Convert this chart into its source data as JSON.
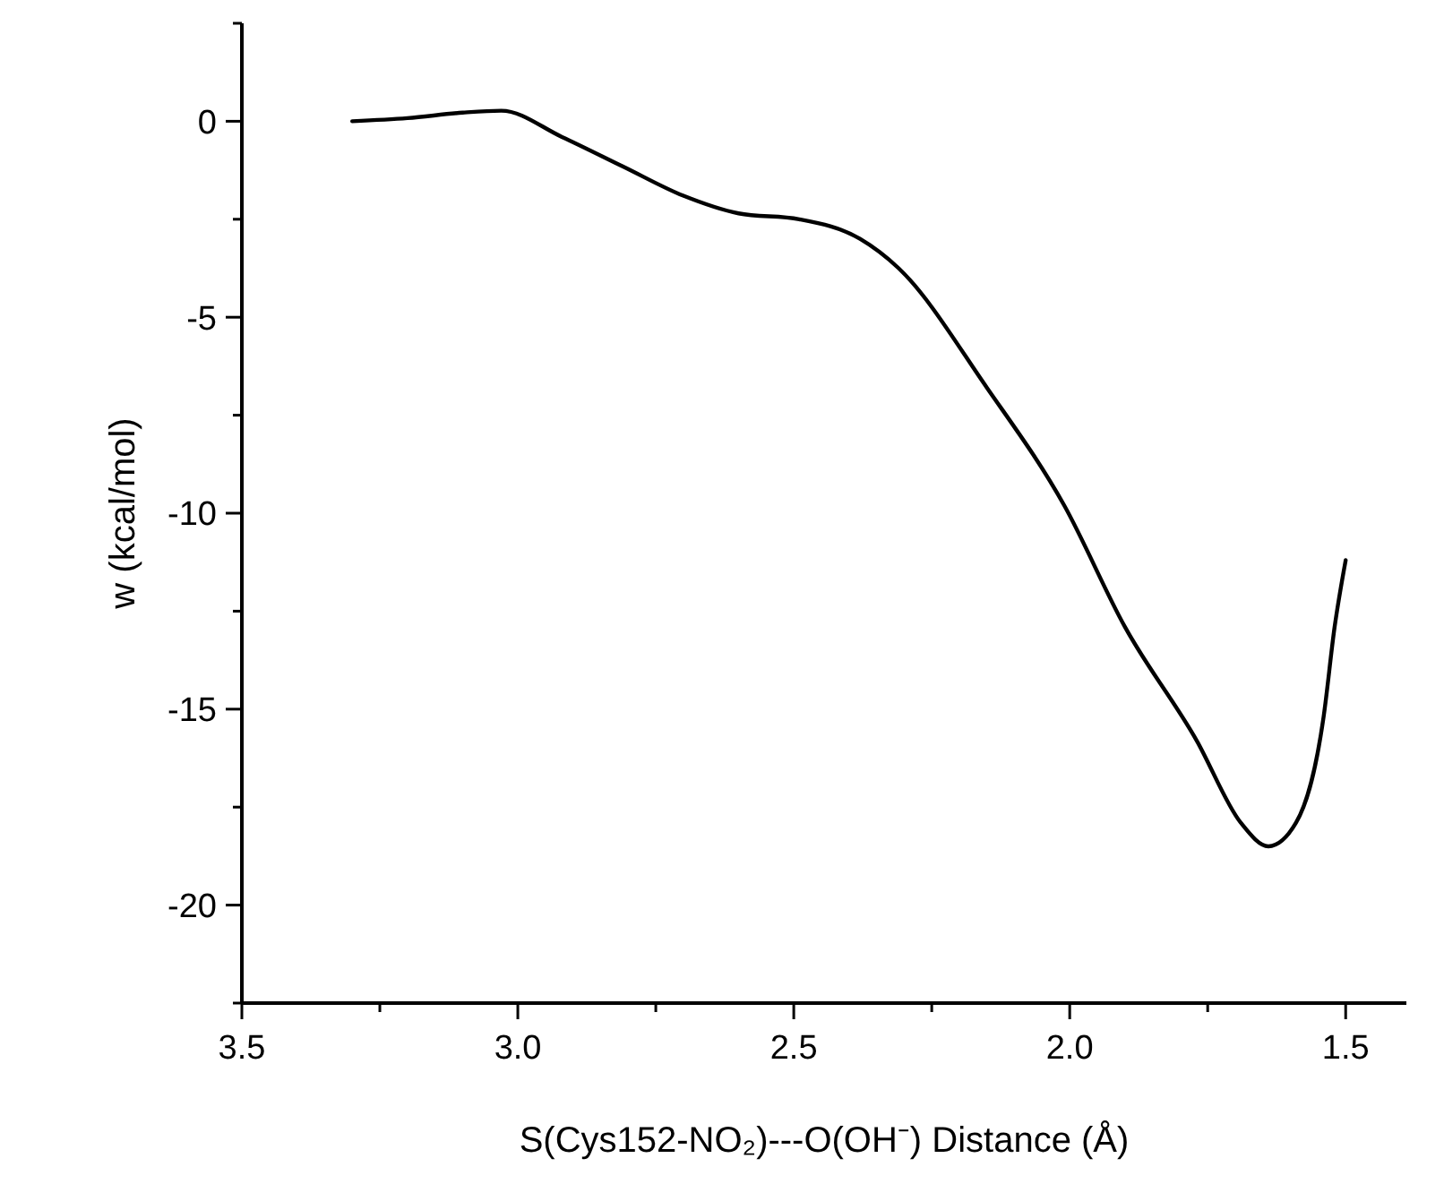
{
  "chart_data": {
    "type": "line",
    "xlabel": "S(Cys152-NO₂)---O(OH⁻) Distance (Å)",
    "ylabel": "w (kcal/mol)",
    "xlim": [
      3.5,
      1.39
    ],
    "ylim": [
      -22.5,
      2.5
    ],
    "xticks": [
      3.5,
      {
        "value": 3.25,
        "label": null
      },
      "3.0",
      {
        "value": 2.75,
        "label": null
      },
      2.5,
      {
        "value": 2.25,
        "label": null
      },
      "2.0",
      {
        "value": 1.75,
        "label": null
      },
      1.5
    ],
    "yticks": [
      {
        "value": -22.5,
        "label": null
      },
      -20,
      {
        "value": -17.5,
        "label": null
      },
      -15,
      {
        "value": -12.5,
        "label": null
      },
      -10,
      {
        "value": -7.5,
        "label": null
      },
      -5,
      {
        "value": -2.5,
        "label": null
      },
      0,
      {
        "value": 2.5,
        "label": null
      }
    ],
    "grid": false,
    "line_style": "solid",
    "marker": "none",
    "series": [
      {
        "color": "#000000",
        "x": [
          3.3,
          3.2,
          3.1,
          3.03,
          2.92,
          2.81,
          2.7,
          2.6,
          2.49,
          2.38,
          2.31,
          2.15,
          2.01,
          1.9,
          1.77,
          1.69,
          1.64,
          1.59,
          1.54,
          1.52,
          1.5
        ],
        "values": [
          0,
          0.08,
          0.22,
          0.27,
          -0.4,
          -1.15,
          -1.9,
          -2.35,
          -2.5,
          -3.0,
          -3.75,
          -6.8,
          -9.8,
          -12.9,
          -15.8,
          -17.9,
          -18.5,
          -17.9,
          -15.2,
          -12.9,
          -11.2
        ]
      }
    ]
  }
}
